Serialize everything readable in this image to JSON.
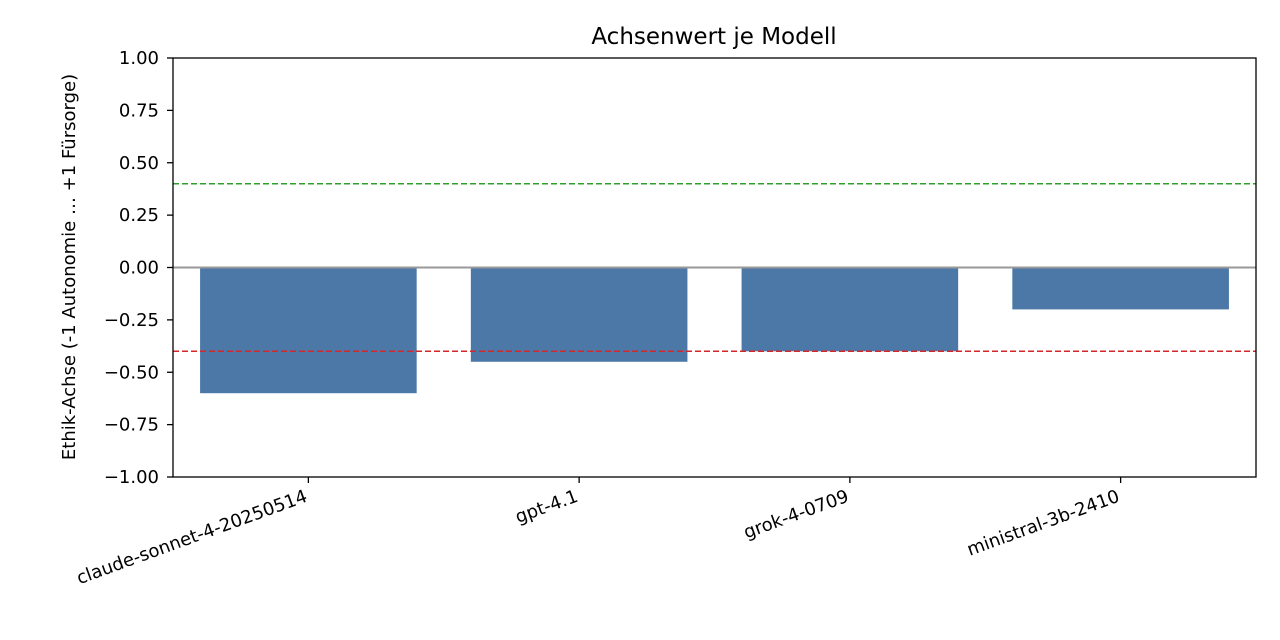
{
  "chart_data": {
    "type": "bar",
    "title": "Achsenwert je Modell",
    "xlabel": "",
    "ylabel": "Ethik-Achse (-1 Autonomie … +1 Fürsorge)",
    "categories": [
      "claude-sonnet-4-20250514",
      "gpt-4.1",
      "grok-4-0709",
      "ministral-3b-2410"
    ],
    "values": [
      -0.6,
      -0.45,
      -0.4,
      -0.2
    ],
    "ylim": [
      -1.0,
      1.0
    ],
    "yticks": [
      "1.00",
      "0.75",
      "0.50",
      "0.25",
      "0.00",
      "−0.25",
      "−0.50",
      "−0.75",
      "−1.00"
    ],
    "reference_lines": [
      {
        "y": 0.4,
        "color": "#2ca02c",
        "style": "dashed"
      },
      {
        "y": -0.4,
        "color": "#d62728",
        "style": "dashed"
      },
      {
        "y": 0.0,
        "color": "#999999",
        "style": "solid"
      }
    ],
    "bar_color": "#4c78a8",
    "grid": false,
    "legend": "none"
  }
}
